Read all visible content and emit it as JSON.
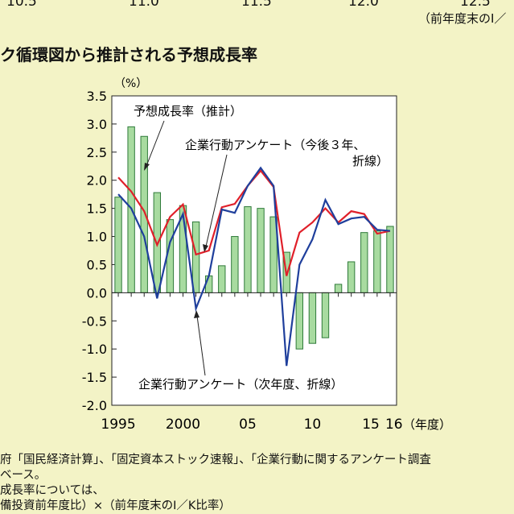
{
  "top_axis": {
    "tick_labels": [
      "10.5",
      "11.0",
      "11.5",
      "12.0",
      "12.5"
    ],
    "unit_note": "（前年度末のI／"
  },
  "section_title": "ク循環図から推計される予想成長率",
  "notes": [
    "府「国民経済計算」、「固定資本ストック速報」、「企業行動に関するアンケート調査",
    "ベース。",
    "成長率については、",
    "備投資前年度比）×（前年度末のI／K比率）"
  ],
  "colors": {
    "background": "#f3f3c6",
    "plot_background": "#ffffff",
    "bar_fill": "#a8dba0",
    "bar_stroke": "#2f7a3a",
    "estimated_line": "#e0202a",
    "survey_line": "#1f3f9c"
  },
  "chart_data": {
    "type": "bar",
    "ylabel": "（%）",
    "ylim": [
      -2.0,
      3.5
    ],
    "y_ticks": [
      3.5,
      3.0,
      2.5,
      2.0,
      1.5,
      1.0,
      0.5,
      0.0,
      -0.5,
      -1.0,
      -1.5,
      -2.0
    ],
    "y_tick_labels": [
      "3.5",
      "3.0",
      "2.5",
      "2.0",
      "1.5",
      "1.0",
      "0.5",
      "0.0",
      "-0.5",
      "-1.0",
      "-1.5",
      "-2.0"
    ],
    "x_tick_labels": [
      "1995",
      "2000",
      "05",
      "10",
      "15",
      "16"
    ],
    "x_unit": "（年度）",
    "categories": [
      1995,
      1996,
      1997,
      1998,
      1999,
      2000,
      2001,
      2002,
      2003,
      2004,
      2005,
      2006,
      2007,
      2008,
      2009,
      2010,
      2011,
      2012,
      2013,
      2014,
      2015,
      2016
    ],
    "bars": {
      "values": [
        1.7,
        2.95,
        2.78,
        1.78,
        1.3,
        1.55,
        1.26,
        0.3,
        0.48,
        1.0,
        1.53,
        1.5,
        1.35,
        0.72,
        -1.0,
        -0.9,
        -0.8,
        0.15,
        0.55,
        1.07,
        1.1,
        1.18
      ]
    },
    "series": [
      {
        "name": "予想成長率（推計）",
        "color": "#e0202a",
        "values": [
          2.05,
          1.8,
          1.45,
          0.85,
          1.35,
          1.57,
          0.68,
          0.75,
          1.52,
          1.58,
          1.9,
          2.17,
          1.88,
          0.3,
          1.07,
          1.25,
          1.5,
          1.25,
          1.45,
          1.4,
          1.05,
          1.1
        ]
      },
      {
        "name": "企業行動アンケート（今後３年、折線）",
        "color": "#1f3f9c",
        "x_range": [
          1995,
          2016
        ],
        "values": [
          1.75,
          1.5,
          1.0,
          -0.1,
          0.9,
          1.4,
          -0.28,
          0.3,
          1.48,
          1.42,
          1.9,
          2.22,
          1.9,
          -1.3,
          0.5,
          0.95,
          1.65,
          1.22,
          1.32,
          1.35,
          1.12,
          1.1
        ]
      }
    ],
    "annotations": [
      "予想成長率（推計）",
      "企業行動アンケート（今後３年、",
      "折線）",
      "企業行動アンケート（次年度、折線）"
    ]
  }
}
